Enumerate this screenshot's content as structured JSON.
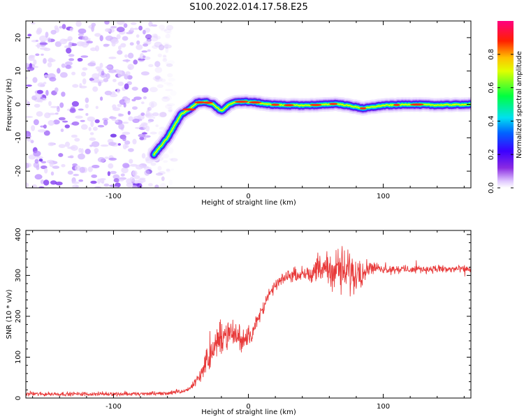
{
  "title": "S100.2022.014.17.58.E25",
  "chart_data": [
    {
      "type": "heatmap",
      "xlabel": "Height of straight line (km)",
      "ylabel": "Frequency (Hz)",
      "xlim": [
        -165,
        165
      ],
      "ylim": [
        -25,
        25
      ],
      "xticks": [
        -100,
        0,
        100
      ],
      "yticks": [
        -20,
        -10,
        0,
        10,
        20
      ],
      "grid": false,
      "colorbar": {
        "label": "Normalized spectral amplitude",
        "range": [
          0.0,
          1.0
        ],
        "ticks": [
          "0.0",
          "0.2",
          "0.4",
          "0.6",
          "0.8"
        ],
        "colormap": "rainbow (white → violet → blue → cyan → green → yellow → red → magenta)"
      },
      "ridge": {
        "description": "Dominant frequency ridge",
        "x": [
          -70,
          -60,
          -50,
          -44,
          -38,
          -32,
          -26,
          -20,
          -14,
          -8,
          -2,
          5,
          15,
          25,
          40,
          55,
          65,
          75,
          85,
          100,
          120,
          140,
          165
        ],
        "y": [
          -15,
          -10,
          -3,
          -1.5,
          0.5,
          0.8,
          0,
          -2,
          0,
          0.8,
          0.8,
          0.6,
          0,
          -0.2,
          -0.3,
          -0.1,
          0.2,
          -0.4,
          -1.2,
          -0.3,
          0,
          -0.2,
          0
        ]
      },
      "noise_region": [
        -165,
        -60
      ]
    },
    {
      "type": "line",
      "xlabel": "Height of straight line (km)",
      "ylabel": "SNR (10 * v/v)",
      "xlim": [
        -165,
        165
      ],
      "ylim": [
        0,
        410
      ],
      "xticks": [
        -100,
        0,
        100
      ],
      "yticks": [
        0,
        100,
        200,
        300,
        400
      ],
      "grid": false,
      "color": "#e83a3a",
      "series": [
        {
          "x": [
            -165,
            -140,
            -120,
            -100,
            -80,
            -60,
            -50,
            -45,
            -40,
            -35,
            -30,
            -25,
            -20,
            -15,
            -10,
            -5,
            0,
            5,
            10,
            15,
            20,
            25,
            30,
            40,
            50,
            60,
            70,
            80,
            90,
            100,
            120,
            140,
            165
          ],
          "values": [
            10,
            10,
            10,
            10,
            10,
            12,
            15,
            20,
            35,
            60,
            100,
            120,
            155,
            150,
            160,
            140,
            150,
            175,
            215,
            250,
            275,
            290,
            300,
            305,
            310,
            315,
            310,
            305,
            320,
            315,
            315,
            315,
            315
          ],
          "noise_amplitude": [
            6,
            6,
            6,
            6,
            6,
            6,
            7,
            8,
            10,
            25,
            40,
            45,
            50,
            45,
            40,
            35,
            30,
            25,
            22,
            20,
            18,
            15,
            15,
            20,
            35,
            50,
            70,
            60,
            20,
            12,
            12,
            12,
            12
          ]
        }
      ]
    }
  ]
}
